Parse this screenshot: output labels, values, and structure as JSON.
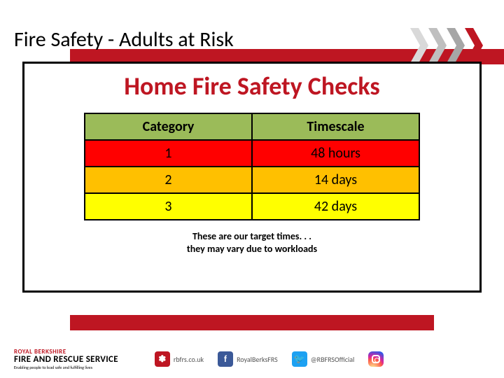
{
  "page_title": "Fire Safety - Adults at Risk",
  "section_title": "Home Fire Safety Checks",
  "table": {
    "columns": [
      "Category",
      "Timescale"
    ],
    "rows": [
      {
        "category": "1",
        "timescale": "48 hours",
        "bg": "#ff0000"
      },
      {
        "category": "2",
        "timescale": "14 days",
        "bg": "#ffc000"
      },
      {
        "category": "3",
        "timescale": "42 days",
        "bg": "#ffff00"
      }
    ],
    "header_bg": "#9bbb59",
    "border_color": "#000000",
    "font_size": 20
  },
  "note_line1": "These are our target times. . .",
  "note_line2": "they may vary due to workloads",
  "brand_color": "#be1622",
  "chevron_grays": [
    "#d9d9d9",
    "#bfbfbf",
    "#a6a6a6"
  ],
  "chevron_red": "#be1622",
  "logo": {
    "top": "ROYAL BERKSHIRE",
    "main": "FIRE AND RESCUE SERVICE",
    "sub": "Enabling people to lead safe and fulfilling lives"
  },
  "socials": [
    {
      "icon_name": "globe-icon",
      "bg": "#be1622",
      "glyph": "✽",
      "label": "rbfrs.co.uk"
    },
    {
      "icon_name": "facebook-icon",
      "bg": "#3b5998",
      "glyph": "f",
      "label": "RoyalBerksFRS"
    },
    {
      "icon_name": "twitter-icon",
      "bg": "#1da1f2",
      "glyph": "🐦",
      "label": "@RBFRSOfficial"
    },
    {
      "icon_name": "instagram-icon",
      "bg": "ig",
      "glyph": "",
      "label": ""
    }
  ]
}
